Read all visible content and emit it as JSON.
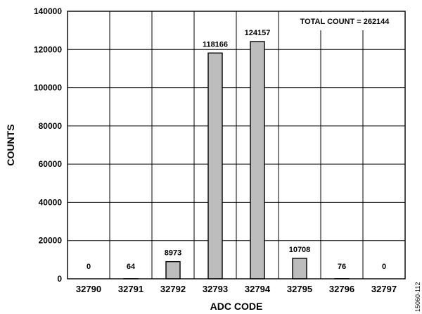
{
  "chart_data": {
    "type": "bar",
    "categories": [
      "32790",
      "32791",
      "32792",
      "32793",
      "32794",
      "32795",
      "32796",
      "32797"
    ],
    "values": [
      0,
      64,
      8973,
      118166,
      124157,
      10708,
      76,
      0
    ],
    "value_labels": [
      "0",
      "64",
      "8973",
      "118166",
      "124157",
      "10708",
      "76",
      "0"
    ],
    "yticks": [
      "0",
      "20000",
      "40000",
      "60000",
      "80000",
      "100000",
      "120000",
      "140000"
    ],
    "ylim": [
      0,
      140000
    ],
    "xlabel": "ADC CODE",
    "ylabel": "COUNTS",
    "annotation": "TOTAL COUNT = 262144",
    "grid": true,
    "bar_color": "#bdbdbd"
  },
  "figure_id": "15060-112"
}
